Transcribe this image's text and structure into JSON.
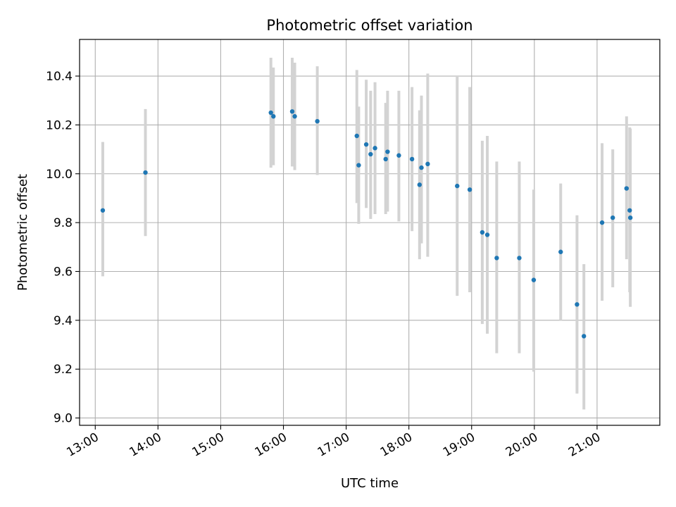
{
  "chart_data": {
    "type": "scatter",
    "title": "Photometric offset variation",
    "xlabel": "UTC time",
    "ylabel": "Photometric offset",
    "x_unit": "hours UTC",
    "xlim": [
      12.75,
      22.0
    ],
    "ylim": [
      8.97,
      10.55
    ],
    "x_ticks": [
      13,
      14,
      15,
      16,
      17,
      18,
      19,
      20,
      21
    ],
    "x_tick_labels": [
      "13:00",
      "14:00",
      "15:00",
      "16:00",
      "17:00",
      "18:00",
      "19:00",
      "20:00",
      "21:00"
    ],
    "y_ticks": [
      9.0,
      9.2,
      9.4,
      9.6,
      9.8,
      10.0,
      10.2,
      10.4
    ],
    "y_tick_labels": [
      "9.0",
      "9.2",
      "9.4",
      "9.6",
      "9.8",
      "10.0",
      "10.2",
      "10.4"
    ],
    "grid": true,
    "marker_color": "#1f77b4",
    "errorbar_color": "#d3d3d3",
    "points": [
      {
        "x": 13.12,
        "y": 9.85,
        "lo": 9.58,
        "hi": 10.13
      },
      {
        "x": 13.8,
        "y": 10.005,
        "lo": 9.745,
        "hi": 10.265
      },
      {
        "x": 15.8,
        "y": 10.25,
        "lo": 10.025,
        "hi": 10.475
      },
      {
        "x": 15.84,
        "y": 10.235,
        "lo": 10.035,
        "hi": 10.435
      },
      {
        "x": 16.14,
        "y": 10.255,
        "lo": 10.03,
        "hi": 10.475
      },
      {
        "x": 16.18,
        "y": 10.235,
        "lo": 10.015,
        "hi": 10.455
      },
      {
        "x": 16.54,
        "y": 10.215,
        "lo": 9.995,
        "hi": 10.44
      },
      {
        "x": 17.17,
        "y": 10.155,
        "lo": 9.88,
        "hi": 10.425
      },
      {
        "x": 17.2,
        "y": 10.035,
        "lo": 9.795,
        "hi": 10.275
      },
      {
        "x": 17.32,
        "y": 10.12,
        "lo": 9.86,
        "hi": 10.385
      },
      {
        "x": 17.39,
        "y": 10.08,
        "lo": 9.815,
        "hi": 10.34
      },
      {
        "x": 17.46,
        "y": 10.105,
        "lo": 9.835,
        "hi": 10.375
      },
      {
        "x": 17.63,
        "y": 10.06,
        "lo": 9.835,
        "hi": 10.29
      },
      {
        "x": 17.66,
        "y": 10.09,
        "lo": 9.845,
        "hi": 10.34
      },
      {
        "x": 17.84,
        "y": 10.075,
        "lo": 9.805,
        "hi": 10.34
      },
      {
        "x": 18.05,
        "y": 10.06,
        "lo": 9.765,
        "hi": 10.355
      },
      {
        "x": 18.17,
        "y": 9.955,
        "lo": 9.65,
        "hi": 10.26
      },
      {
        "x": 18.2,
        "y": 10.025,
        "lo": 9.715,
        "hi": 10.32
      },
      {
        "x": 18.3,
        "y": 10.04,
        "lo": 9.66,
        "hi": 10.41
      },
      {
        "x": 18.77,
        "y": 9.95,
        "lo": 9.5,
        "hi": 10.4
      },
      {
        "x": 18.97,
        "y": 9.935,
        "lo": 9.515,
        "hi": 10.355
      },
      {
        "x": 19.17,
        "y": 9.76,
        "lo": 9.385,
        "hi": 10.135
      },
      {
        "x": 19.25,
        "y": 9.75,
        "lo": 9.345,
        "hi": 10.155
      },
      {
        "x": 19.4,
        "y": 9.655,
        "lo": 9.265,
        "hi": 10.05
      },
      {
        "x": 19.76,
        "y": 9.655,
        "lo": 9.265,
        "hi": 10.05
      },
      {
        "x": 19.99,
        "y": 9.565,
        "lo": 9.19,
        "hi": 9.935
      },
      {
        "x": 20.42,
        "y": 9.68,
        "lo": 9.4,
        "hi": 9.96
      },
      {
        "x": 20.68,
        "y": 9.465,
        "lo": 9.1,
        "hi": 9.83
      },
      {
        "x": 20.79,
        "y": 9.335,
        "lo": 9.035,
        "hi": 9.63
      },
      {
        "x": 21.08,
        "y": 9.8,
        "lo": 9.48,
        "hi": 10.125
      },
      {
        "x": 21.25,
        "y": 9.82,
        "lo": 9.535,
        "hi": 10.1
      },
      {
        "x": 21.47,
        "y": 9.94,
        "lo": 9.65,
        "hi": 10.235
      },
      {
        "x": 21.52,
        "y": 9.85,
        "lo": 9.515,
        "hi": 10.19
      },
      {
        "x": 21.53,
        "y": 9.82,
        "lo": 9.455,
        "hi": 10.185
      }
    ]
  }
}
